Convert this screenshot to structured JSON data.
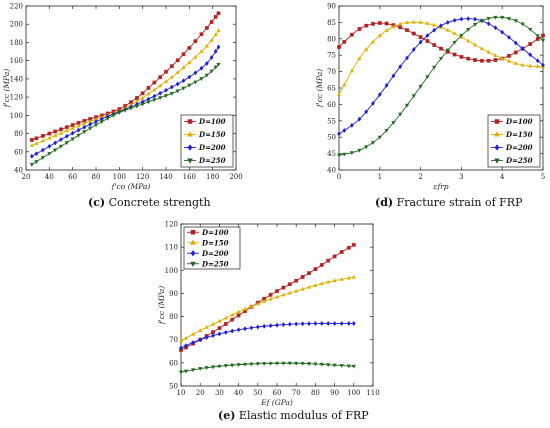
{
  "chart_data": [
    {
      "type": "line",
      "panel": "c",
      "xlabel": "f'co (MPa)",
      "ylabel": "f'cc (MPa)",
      "xlim": [
        20,
        200
      ],
      "ylim": [
        40,
        220
      ],
      "xticks": [
        20,
        40,
        60,
        80,
        100,
        120,
        140,
        160,
        180,
        200
      ],
      "yticks": [
        40,
        60,
        80,
        100,
        120,
        140,
        160,
        180,
        200,
        220
      ],
      "legend_position": "bottom-right",
      "series": [
        {
          "name": "D=100",
          "color": "#b22222",
          "marker": "square",
          "x": [
            25,
            40,
            55,
            70,
            85,
            100,
            115,
            130,
            145,
            160,
            175,
            185
          ],
          "y": [
            73,
            80,
            87,
            94,
            100,
            107,
            119,
            136,
            154,
            174,
            196,
            212
          ]
        },
        {
          "name": "D=150",
          "color": "#e0b000",
          "marker": "triangle-up",
          "x": [
            25,
            40,
            55,
            70,
            85,
            100,
            115,
            130,
            145,
            160,
            175,
            185
          ],
          "y": [
            67,
            75,
            83,
            91,
            98,
            105,
            115,
            128,
            142,
            158,
            176,
            193
          ]
        },
        {
          "name": "D=200",
          "color": "#1f1fd6",
          "marker": "diamond",
          "x": [
            25,
            40,
            55,
            70,
            85,
            100,
            115,
            130,
            145,
            160,
            175,
            185
          ],
          "y": [
            55,
            66,
            77,
            87,
            96,
            104,
            112,
            121,
            131,
            142,
            157,
            175
          ]
        },
        {
          "name": "D=250",
          "color": "#1e6b1e",
          "marker": "triangle-down",
          "x": [
            25,
            40,
            55,
            70,
            85,
            100,
            115,
            130,
            145,
            160,
            175,
            185
          ],
          "y": [
            46,
            58,
            70,
            82,
            93,
            103,
            110,
            117,
            124,
            133,
            144,
            156
          ]
        }
      ],
      "caption_letter": "(c)",
      "caption_text": "Concrete strength"
    },
    {
      "type": "line",
      "panel": "d",
      "xlabel": "εfrp",
      "ylabel": "f'cc (MPa)",
      "xlim": [
        0,
        5
      ],
      "ylim": [
        40,
        90
      ],
      "xticks": [
        0,
        1,
        2,
        3,
        4,
        5
      ],
      "yticks": [
        40,
        45,
        50,
        55,
        60,
        65,
        70,
        75,
        80,
        85,
        90
      ],
      "legend_position": "bottom-right",
      "series": [
        {
          "name": "D=100",
          "color": "#b22222",
          "marker": "square",
          "x": [
            0,
            0.5,
            1,
            1.5,
            2,
            2.5,
            3,
            3.5,
            4,
            4.5,
            5
          ],
          "y": [
            77.5,
            83,
            84.8,
            83.5,
            80.5,
            77,
            74.5,
            73.3,
            74,
            77,
            81
          ]
        },
        {
          "name": "D=150",
          "color": "#e0b000",
          "marker": "triangle-up",
          "x": [
            0,
            0.5,
            1,
            1.5,
            2,
            2.5,
            3,
            3.5,
            4,
            4.5,
            5
          ],
          "y": [
            63,
            74,
            81,
            84.5,
            85,
            83.5,
            80.5,
            77,
            74,
            72,
            71.5
          ]
        },
        {
          "name": "D=200",
          "color": "#1f1fd6",
          "marker": "diamond",
          "x": [
            0,
            0.5,
            1,
            1.5,
            2,
            2.5,
            3,
            3.5,
            4,
            4.5,
            5
          ],
          "y": [
            51,
            55.5,
            63,
            71.5,
            79,
            84,
            86,
            85.5,
            82,
            77,
            72
          ]
        },
        {
          "name": "D=250",
          "color": "#1e6b1e",
          "marker": "triangle-down",
          "x": [
            0,
            0.5,
            1,
            1.5,
            2,
            2.5,
            3,
            3.5,
            4,
            4.5,
            5
          ],
          "y": [
            44.5,
            46,
            50,
            57,
            65.5,
            74,
            81,
            85.5,
            86.5,
            84.5,
            79.5
          ]
        }
      ],
      "caption_letter": "(d)",
      "caption_text": "Fracture strain of FRP"
    },
    {
      "type": "line",
      "panel": "e",
      "xlabel": "Ef (GPa)",
      "ylabel": "f'cc (MPa)",
      "xlim": [
        10,
        110
      ],
      "ylim": [
        50,
        120
      ],
      "xticks": [
        10,
        20,
        30,
        40,
        50,
        60,
        70,
        80,
        90,
        100,
        110
      ],
      "yticks": [
        50,
        60,
        70,
        80,
        90,
        100,
        110,
        120
      ],
      "legend_position": "top-left",
      "series": [
        {
          "name": "D=100",
          "color": "#b22222",
          "marker": "square",
          "x": [
            10,
            20,
            30,
            40,
            50,
            60,
            70,
            80,
            90,
            100
          ],
          "y": [
            65.5,
            70,
            75,
            80.5,
            86,
            91,
            95.5,
            100.5,
            106,
            111
          ]
        },
        {
          "name": "D=150",
          "color": "#e0b000",
          "marker": "triangle-up",
          "x": [
            10,
            20,
            30,
            40,
            50,
            60,
            70,
            80,
            90,
            100
          ],
          "y": [
            69.5,
            74,
            78,
            82,
            85.5,
            88.5,
            91,
            93.5,
            95.5,
            97
          ]
        },
        {
          "name": "D=200",
          "color": "#1f1fd6",
          "marker": "diamond",
          "x": [
            10,
            20,
            30,
            40,
            50,
            60,
            70,
            80,
            90,
            100
          ],
          "y": [
            66.5,
            70,
            72.5,
            74.3,
            75.5,
            76.3,
            76.8,
            77,
            77,
            77
          ]
        },
        {
          "name": "D=250",
          "color": "#1e6b1e",
          "marker": "triangle-down",
          "x": [
            10,
            20,
            30,
            40,
            50,
            60,
            70,
            80,
            90,
            100
          ],
          "y": [
            56,
            57.5,
            58.5,
            59.2,
            59.6,
            59.8,
            59.8,
            59.5,
            59,
            58.5
          ]
        }
      ],
      "caption_letter": "(e)",
      "caption_text": "Elastic modulus of FRP"
    }
  ]
}
